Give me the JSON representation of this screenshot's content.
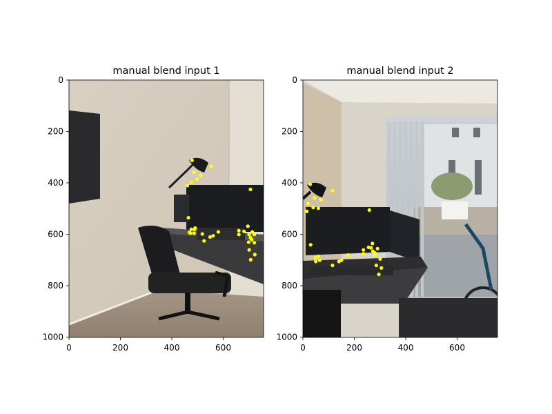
{
  "figure": {
    "background": "#ffffff",
    "marker_color": "#ffff00",
    "panels": [
      {
        "title": "manual blend input 1",
        "x_ticks": [
          "0",
          "200",
          "400",
          "600"
        ],
        "y_ticks": [
          "0",
          "200",
          "400",
          "600",
          "800",
          "1000"
        ],
        "image_description": "Desk with monitor, lamp and mesh office chair against beige wall; TV mounted on the left wall",
        "keypoints": [
          [
            478,
            312
          ],
          [
            553,
            335
          ],
          [
            485,
            358
          ],
          [
            512,
            370
          ],
          [
            498,
            385
          ],
          [
            476,
            398
          ],
          [
            460,
            410
          ],
          [
            705,
            425
          ],
          [
            464,
            535
          ],
          [
            488,
            580
          ],
          [
            475,
            580
          ],
          [
            472,
            595
          ],
          [
            486,
            595
          ],
          [
            518,
            598
          ],
          [
            548,
            610
          ],
          [
            560,
            605
          ],
          [
            525,
            625
          ],
          [
            580,
            590
          ],
          [
            660,
            585
          ],
          [
            680,
            588
          ],
          [
            695,
            568
          ],
          [
            700,
            600
          ],
          [
            712,
            590
          ],
          [
            720,
            600
          ],
          [
            660,
            600
          ],
          [
            705,
            612
          ],
          [
            710,
            620
          ],
          [
            698,
            630
          ],
          [
            720,
            632
          ],
          [
            700,
            660
          ],
          [
            722,
            678
          ],
          [
            706,
            698
          ],
          [
            468,
            592
          ],
          [
            490,
            575
          ]
        ]
      },
      {
        "title": "manual blend input 2",
        "x_ticks": [
          "0",
          "200",
          "400",
          "600"
        ],
        "y_ticks": [
          "0",
          "200",
          "400",
          "600",
          "800",
          "1000"
        ],
        "image_description": "Desk with monitor and lamp beside sliding glass door with vertical blinds, patio and potted plant outside, bicycle on the right",
        "keypoints": [
          [
            28,
            405
          ],
          [
            115,
            430
          ],
          [
            45,
            458
          ],
          [
            70,
            465
          ],
          [
            20,
            480
          ],
          [
            40,
            495
          ],
          [
            60,
            498
          ],
          [
            15,
            510
          ],
          [
            30,
            640
          ],
          [
            258,
            505
          ],
          [
            270,
            635
          ],
          [
            255,
            650
          ],
          [
            290,
            655
          ],
          [
            235,
            660
          ],
          [
            272,
            665
          ],
          [
            280,
            672
          ],
          [
            235,
            675
          ],
          [
            280,
            680
          ],
          [
            300,
            695
          ],
          [
            60,
            685
          ],
          [
            48,
            690
          ],
          [
            65,
            700
          ],
          [
            50,
            705
          ],
          [
            175,
            680
          ],
          [
            140,
            705
          ],
          [
            150,
            700
          ],
          [
            115,
            720
          ],
          [
            285,
            720
          ],
          [
            305,
            730
          ],
          [
            295,
            755
          ],
          [
            265,
            652
          ]
        ]
      }
    ]
  }
}
